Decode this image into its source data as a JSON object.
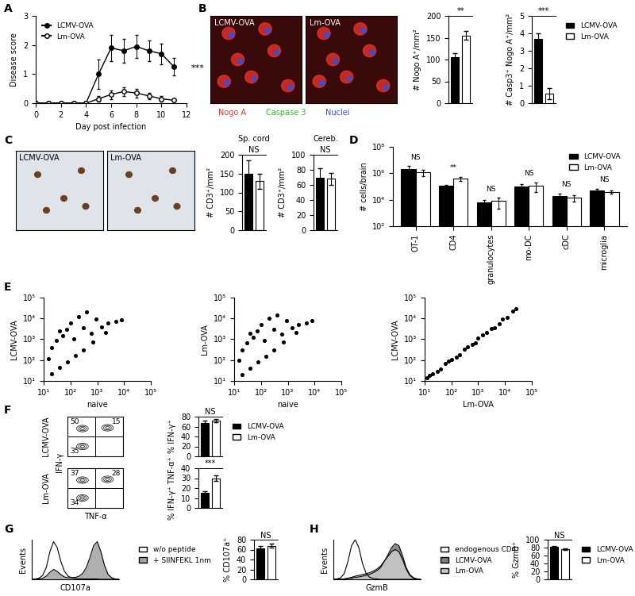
{
  "chart_data": [
    {
      "panel": "A",
      "type": "line",
      "xlabel": "Day post infection",
      "ylabel": "Disease score",
      "x": [
        0,
        1,
        2,
        3,
        4,
        5,
        6,
        7,
        8,
        9,
        10,
        11
      ],
      "xlim": [
        0,
        12
      ],
      "xticks": [
        0,
        2,
        4,
        6,
        8,
        10,
        12
      ],
      "ylim": [
        0,
        3
      ],
      "yticks": [
        0,
        1,
        2,
        3
      ],
      "legend": "upper left",
      "annotation": "***",
      "series": [
        {
          "name": "LCMV-OVA",
          "color": "#000000",
          "marker": "circle",
          "values": [
            0,
            0,
            0,
            0,
            0,
            1.0,
            1.9,
            1.8,
            1.95,
            1.8,
            1.7,
            1.25
          ],
          "errors": [
            0,
            0,
            0,
            0,
            0,
            0.5,
            0.45,
            0.4,
            0.4,
            0.35,
            0.35,
            0.3
          ]
        },
        {
          "name": "Lm-OVA",
          "color": "#000000",
          "marker": "open_circle",
          "values": [
            0,
            0,
            0,
            0,
            0,
            0.15,
            0.3,
            0.4,
            0.35,
            0.25,
            0.15,
            0.1
          ],
          "errors": [
            0,
            0,
            0,
            0,
            0,
            0.1,
            0.15,
            0.15,
            0.15,
            0.1,
            0.1,
            0.05
          ]
        }
      ]
    },
    {
      "panel": "B",
      "type": "bar",
      "ylabel": "# Nogo A⁺/mm²",
      "ylim": [
        0,
        200
      ],
      "yticks": [
        0,
        50,
        100,
        150,
        200
      ],
      "annotation": "**",
      "tick_labels": "y",
      "values": [
        105,
        155
      ],
      "errors": [
        10,
        10
      ],
      "colors": [
        "#000000",
        "#ffffff"
      ]
    },
    {
      "type": "bar",
      "ylabel": "# Casp3⁺ Nogo A⁺/mm²",
      "ylim": [
        0,
        5
      ],
      "yticks": [
        0,
        1,
        2,
        3,
        4,
        5
      ],
      "annotation": "***",
      "tick_labels": "y",
      "legend": "right",
      "series": [
        {
          "name": "LCMV-OVA",
          "color": "#000000",
          "values": [
            3.7
          ],
          "errors": [
            0.3
          ]
        },
        {
          "name": "Lm-OVA",
          "color": "#ffffff",
          "values": [
            0.55
          ],
          "errors": [
            0.3
          ]
        }
      ]
    },
    {
      "panel": "C",
      "type": "bar",
      "title": "Sp. cord",
      "ylabel": "# CD3⁺/mm²",
      "ylim": [
        0,
        200
      ],
      "yticks": [
        0,
        50,
        100,
        150,
        200
      ],
      "annotation": "NS",
      "tick_labels": "y",
      "values": [
        150,
        130
      ],
      "errors": [
        35,
        20
      ],
      "colors": [
        "#000000",
        "#ffffff"
      ]
    },
    {
      "type": "bar",
      "title": "Cereb.",
      "ylabel": "# CD3⁺/mm²",
      "ylim": [
        0,
        100
      ],
      "yticks": [
        0,
        20,
        40,
        60,
        80,
        100
      ],
      "annotation": "NS",
      "tick_labels": "y",
      "values": [
        70,
        68
      ],
      "errors": [
        12,
        8
      ],
      "colors": [
        "#000000",
        "#ffffff"
      ]
    },
    {
      "panel": "D",
      "type": "bar",
      "log": "y",
      "ylabel": "# cells/brain",
      "categories": [
        "OT-1",
        "CD4",
        "granulocytes",
        "mo-DC",
        "cDC",
        "microglia"
      ],
      "ylim": [
        100,
        100000000
      ],
      "yticks": [
        {
          "value": 100,
          "label": "10²"
        },
        {
          "value": 10000,
          "label": "10⁴"
        },
        {
          "value": 1000000,
          "label": "10⁶"
        },
        {
          "value": 100000000,
          "label": "10⁸"
        }
      ],
      "legend": "upper right",
      "annotations": [
        "NS",
        "**",
        "NS",
        "NS",
        "NS",
        "NS"
      ],
      "series": [
        {
          "name": "LCMV-OVA",
          "color": "#000000",
          "values": [
            2000000,
            120000,
            6000,
            100000,
            20000,
            50000
          ],
          "errors": [
            1500000,
            20000,
            3000,
            60000,
            10000,
            15000
          ]
        },
        {
          "name": "Lm-OVA",
          "color": "#ffffff",
          "values": [
            1200000,
            400000,
            8000,
            120000,
            15000,
            40000
          ],
          "errors": [
            600000,
            150000,
            6000,
            80000,
            8000,
            10000
          ]
        }
      ]
    },
    {
      "panel": "E",
      "type": "scatter",
      "xlabel": "naive",
      "ylabel": "LCMV-OVA",
      "log": true,
      "color": "#000000",
      "xlim": [
        10,
        100000
      ],
      "ylim": [
        10,
        100000
      ],
      "xticks": [
        {
          "value": 10,
          "label": "10¹"
        },
        {
          "value": 100,
          "label": "10²"
        },
        {
          "value": 1000,
          "label": "10³"
        },
        {
          "value": 10000,
          "label": "10⁴"
        },
        {
          "value": 100000,
          "label": "10⁵"
        }
      ],
      "yticks": [
        {
          "value": 10,
          "label": "10¹"
        },
        {
          "value": 100,
          "label": "10²"
        },
        {
          "value": 1000,
          "label": "10³"
        },
        {
          "value": 10000,
          "label": "10⁴"
        },
        {
          "value": 100000,
          "label": "10⁵"
        }
      ],
      "x": [
        15,
        20,
        30,
        40,
        50,
        70,
        100,
        130,
        200,
        300,
        400,
        600,
        900,
        1500,
        2500,
        5000,
        20,
        40,
        80,
        150,
        300,
        700,
        2000,
        8000
      ],
      "y": [
        120,
        400,
        900,
        2500,
        1500,
        3000,
        6000,
        1000,
        12000,
        3500,
        20000,
        2000,
        9000,
        4000,
        6000,
        7000,
        22,
        45,
        85,
        160,
        310,
        720,
        2100,
        8500
      ]
    },
    {
      "type": "scatter",
      "xlabel": "naive",
      "ylabel": "Lm-OVA",
      "log": true,
      "color": "#000000",
      "xlim": [
        10,
        100000
      ],
      "ylim": [
        10,
        100000
      ],
      "xticks": [
        {
          "value": 10,
          "label": "10¹"
        },
        {
          "value": 100,
          "label": "10²"
        },
        {
          "value": 1000,
          "label": "10³"
        },
        {
          "value": 10000,
          "label": "10⁴"
        },
        {
          "value": 100000,
          "label": "10⁵"
        }
      ],
      "yticks": [
        {
          "value": 10,
          "label": "10¹"
        },
        {
          "value": 100,
          "label": "10²"
        },
        {
          "value": 1000,
          "label": "10³"
        },
        {
          "value": 10000,
          "label": "10⁴"
        },
        {
          "value": 100000,
          "label": "10⁵"
        }
      ],
      "x": [
        15,
        20,
        30,
        40,
        50,
        70,
        100,
        130,
        200,
        300,
        400,
        600,
        900,
        1500,
        2500,
        5000,
        20,
        40,
        80,
        150,
        300,
        700,
        2000,
        8000
      ],
      "y": [
        100,
        300,
        700,
        2000,
        1200,
        2500,
        5000,
        900,
        10000,
        3000,
        15000,
        1800,
        8000,
        3500,
        5000,
        6000,
        20,
        42,
        82,
        155,
        305,
        710,
        2050,
        8200
      ]
    },
    {
      "type": "scatter",
      "xlabel": "Lm-OVA",
      "ylabel": "LCMV-OVA",
      "log": true,
      "color": "#000000",
      "xlim": [
        10,
        100000
      ],
      "ylim": [
        10,
        100000
      ],
      "xticks": [
        {
          "value": 10,
          "label": "10¹"
        },
        {
          "value": 100,
          "label": "10²"
        },
        {
          "value": 1000,
          "label": "10³"
        },
        {
          "value": 10000,
          "label": "10⁴"
        },
        {
          "value": 100000,
          "label": "10⁵"
        }
      ],
      "yticks": [
        {
          "value": 10,
          "label": "10¹"
        },
        {
          "value": 100,
          "label": "10²"
        },
        {
          "value": 1000,
          "label": "10³"
        },
        {
          "value": 10000,
          "label": "10⁴"
        },
        {
          "value": 100000,
          "label": "10⁵"
        }
      ],
      "x": [
        12,
        20,
        40,
        80,
        100,
        200,
        400,
        800,
        1000,
        2000,
        4000,
        8000,
        12000,
        25000,
        15,
        30,
        60,
        150,
        300,
        600,
        1500,
        3000,
        6000,
        20000
      ],
      "y": [
        14,
        22,
        38,
        90,
        110,
        180,
        450,
        700,
        1100,
        2200,
        3600,
        9000,
        11000,
        30000,
        18,
        28,
        70,
        140,
        330,
        550,
        1600,
        3300,
        5500,
        22000
      ]
    },
    {
      "panel": "F",
      "type": "quadrant",
      "xlabel": "TNF-α",
      "ylabel": "IFN-γ",
      "rows": [
        {
          "label": "LCMV-OVA",
          "upper_left": 50,
          "upper_right": 15,
          "lower_left": 35
        },
        {
          "label": "Lm-OVA",
          "upper_left": 37,
          "upper_right": 28,
          "lower_left": 34
        }
      ]
    },
    {
      "type": "bar",
      "ylabel": "% IFN-γ⁺",
      "ylim": [
        0,
        80
      ],
      "yticks": [
        0,
        20,
        40,
        60,
        80
      ],
      "annotation": "NS",
      "tick_labels": "y",
      "legend": "right",
      "series": [
        {
          "name": "LCMV-OVA",
          "color": "#000000",
          "values": [
            68
          ],
          "errors": [
            4
          ]
        },
        {
          "name": "Lm-OVA",
          "color": "#ffffff",
          "values": [
            72
          ],
          "errors": [
            3
          ]
        }
      ]
    },
    {
      "type": "bar",
      "ylabel": "% IFN-γ⁺ TNF-α⁺",
      "ylim": [
        0,
        40
      ],
      "yticks": [
        0,
        10,
        20,
        30,
        40
      ],
      "annotation": "***",
      "tick_labels": "y",
      "values": [
        15,
        30
      ],
      "errors": [
        2,
        3
      ],
      "colors": [
        "#000000",
        "#ffffff"
      ]
    },
    {
      "panel": "G",
      "type": "histogram_overlay",
      "xlabel": "CD107a",
      "ylabel": "Events",
      "tick_labels": false,
      "x": [
        0,
        1,
        2,
        3,
        4,
        5,
        6,
        7,
        8,
        9,
        10,
        11,
        12,
        13,
        14,
        15,
        16,
        17,
        18,
        19,
        20,
        21,
        22,
        23,
        24
      ],
      "xlim": [
        0,
        24
      ],
      "ylim": [
        0,
        100
      ],
      "legend": "right",
      "series": [
        {
          "name": "w/o peptide",
          "color": "none",
          "values": [
            0,
            1,
            3,
            10,
            30,
            70,
            95,
            80,
            45,
            20,
            8,
            4,
            2,
            1,
            1,
            1,
            1,
            1,
            1,
            0,
            0,
            0,
            0,
            0,
            0
          ]
        },
        {
          "name": "+ SIINFEKL 1nm",
          "color": "#a6a6a6",
          "values": [
            0,
            0,
            1,
            3,
            8,
            18,
            25,
            20,
            12,
            6,
            4,
            4,
            5,
            8,
            15,
            30,
            55,
            85,
            95,
            70,
            35,
            12,
            4,
            1,
            0
          ]
        }
      ]
    },
    {
      "type": "bar",
      "ylabel": "% CD107a⁺",
      "ylim": [
        0,
        80
      ],
      "yticks": [
        0,
        20,
        40,
        60,
        80
      ],
      "annotation": "NS",
      "tick_labels": "y",
      "values": [
        63,
        68
      ],
      "errors": [
        4,
        4
      ],
      "colors": [
        "#000000",
        "#ffffff"
      ]
    },
    {
      "panel": "H",
      "type": "histogram_overlay",
      "xlabel": "GzmB",
      "ylabel": "Events",
      "tick_labels": false,
      "x": [
        0,
        1,
        2,
        3,
        4,
        5,
        6,
        7,
        8,
        9,
        10,
        11,
        12,
        13,
        14,
        15,
        16,
        17,
        18,
        19,
        20,
        21,
        22,
        23,
        24
      ],
      "xlim": [
        0,
        24
      ],
      "ylim": [
        0,
        100
      ],
      "legend": "right",
      "series": [
        {
          "name": "endogenous CD4⁺",
          "color": "none",
          "values": [
            0,
            1,
            4,
            15,
            45,
            85,
            100,
            80,
            40,
            15,
            5,
            2,
            1,
            0,
            0,
            0,
            0,
            0,
            0,
            0,
            0,
            0,
            0,
            0,
            0
          ]
        },
        {
          "name": "LCMV-OVA",
          "color": "#808080",
          "values": [
            0,
            0,
            0,
            1,
            2,
            3,
            5,
            6,
            8,
            10,
            13,
            17,
            22,
            30,
            45,
            62,
            80,
            90,
            85,
            60,
            30,
            12,
            4,
            1,
            0
          ]
        },
        {
          "name": "Lm-OVA",
          "color": "#c8c8c8",
          "values": [
            0,
            0,
            0,
            1,
            3,
            5,
            8,
            10,
            12,
            14,
            17,
            21,
            26,
            34,
            46,
            58,
            70,
            75,
            70,
            50,
            26,
            10,
            3,
            1,
            0
          ]
        }
      ]
    },
    {
      "type": "bar",
      "ylabel": "% GzmB⁺",
      "ylim": [
        0,
        100
      ],
      "yticks": [
        0,
        20,
        40,
        60,
        80,
        100
      ],
      "annotation": "NS",
      "tick_labels": "y",
      "legend": "right",
      "series": [
        {
          "name": "LCMV-OVA",
          "color": "#000000",
          "values": [
            82
          ],
          "errors": [
            3
          ]
        },
        {
          "name": "Lm-OVA",
          "color": "#ffffff",
          "values": [
            77
          ],
          "errors": [
            2
          ]
        }
      ]
    }
  ],
  "images": {
    "B": {
      "labels": [
        "LCMV-OVA",
        "Lm-OVA"
      ],
      "channels": [
        {
          "name": "Nogo A",
          "color": "#e8322b"
        },
        {
          "name": "Caspase 3",
          "color": "#2fb82f"
        },
        {
          "name": "Nuclei",
          "color": "#3050e0"
        }
      ]
    },
    "C": {
      "labels": [
        "LCMV-OVA",
        "Lm-OVA"
      ]
    }
  }
}
